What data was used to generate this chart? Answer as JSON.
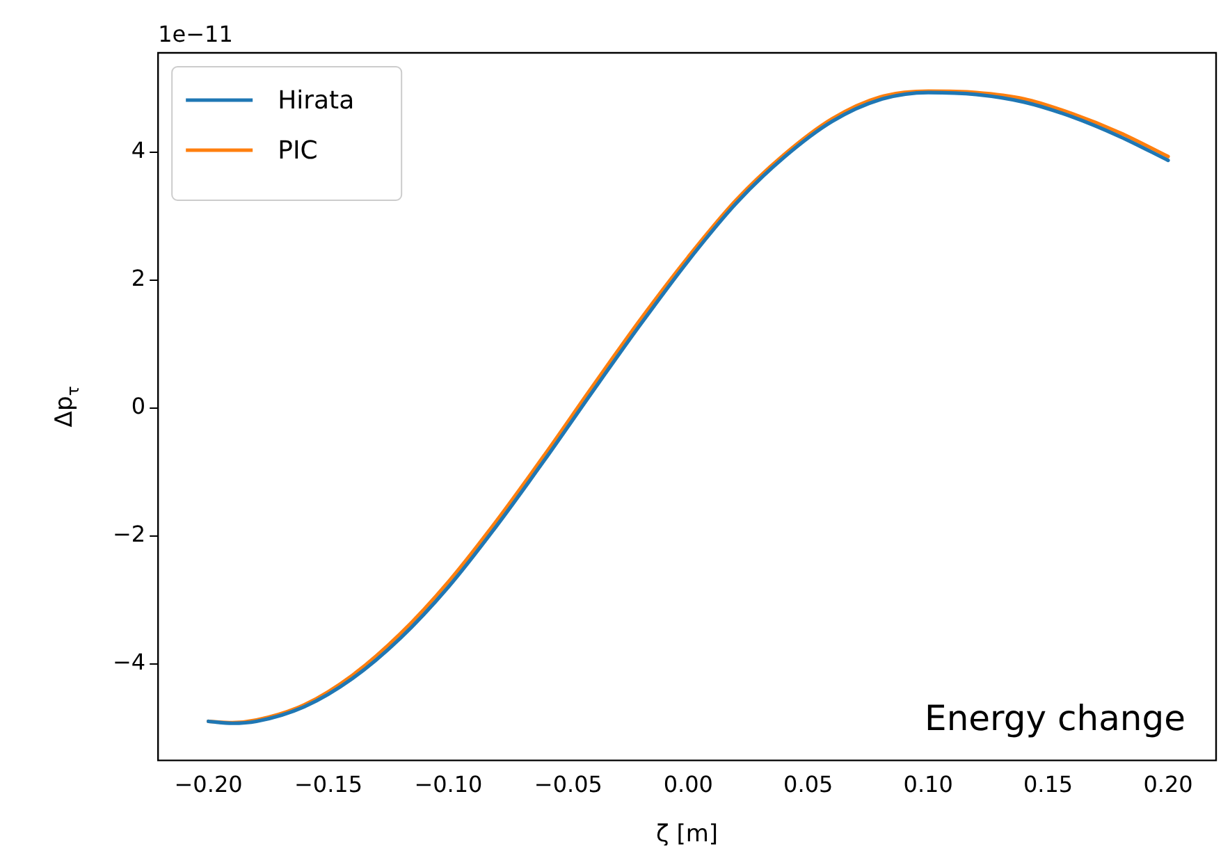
{
  "chart_data": {
    "type": "line",
    "xlabel": "ζ [m]",
    "ylabel": "Δp$_{τ}$",
    "annotations": [
      "1e−11",
      "Energy change"
    ],
    "x": [
      -0.2,
      -0.19,
      -0.18,
      -0.16,
      -0.14,
      -0.12,
      -0.1,
      -0.08,
      -0.06,
      -0.04,
      -0.02,
      0,
      0.02,
      0.04,
      0.06,
      0.08,
      0.1,
      0.12,
      0.14,
      0.16,
      0.18,
      0.2
    ],
    "series": [
      {
        "name": "Hirata",
        "color": "#1f77b4",
        "values": [
          -4.9,
          -4.93,
          -4.9,
          -4.67,
          -4.23,
          -3.6,
          -2.8,
          -1.85,
          -0.82,
          0.25,
          1.3,
          2.3,
          3.2,
          3.92,
          4.48,
          4.82,
          4.93,
          4.9,
          4.78,
          4.55,
          4.24,
          3.87
        ]
      },
      {
        "name": "PIC",
        "color": "#ff7f0e",
        "values": [
          -4.9,
          -4.92,
          -4.88,
          -4.64,
          -4.18,
          -3.53,
          -2.72,
          -1.77,
          -0.74,
          0.33,
          1.38,
          2.36,
          3.25,
          3.96,
          4.52,
          4.86,
          4.95,
          4.93,
          4.83,
          4.6,
          4.3,
          3.93
        ]
      }
    ],
    "xlim": [
      -0.221,
      0.22
    ],
    "ylim": [
      -5.51,
      5.55
    ],
    "xticks": [
      {
        "value": -0.2,
        "label": "−0.20"
      },
      {
        "value": -0.15,
        "label": "−0.15"
      },
      {
        "value": -0.1,
        "label": "−0.10"
      },
      {
        "value": -0.05,
        "label": "−0.05"
      },
      {
        "value": 0,
        "label": "0.00"
      },
      {
        "value": 0.05,
        "label": "0.05"
      },
      {
        "value": 0.1,
        "label": "0.10"
      },
      {
        "value": 0.15,
        "label": "0.15"
      },
      {
        "value": 0.2,
        "label": "0.20"
      }
    ],
    "yticks": [
      {
        "value": -4,
        "label": "−4"
      },
      {
        "value": -2,
        "label": "−2"
      },
      0,
      2,
      4
    ],
    "legend": "top left",
    "marker": "none",
    "line_style": "solid",
    "grid": false
  }
}
